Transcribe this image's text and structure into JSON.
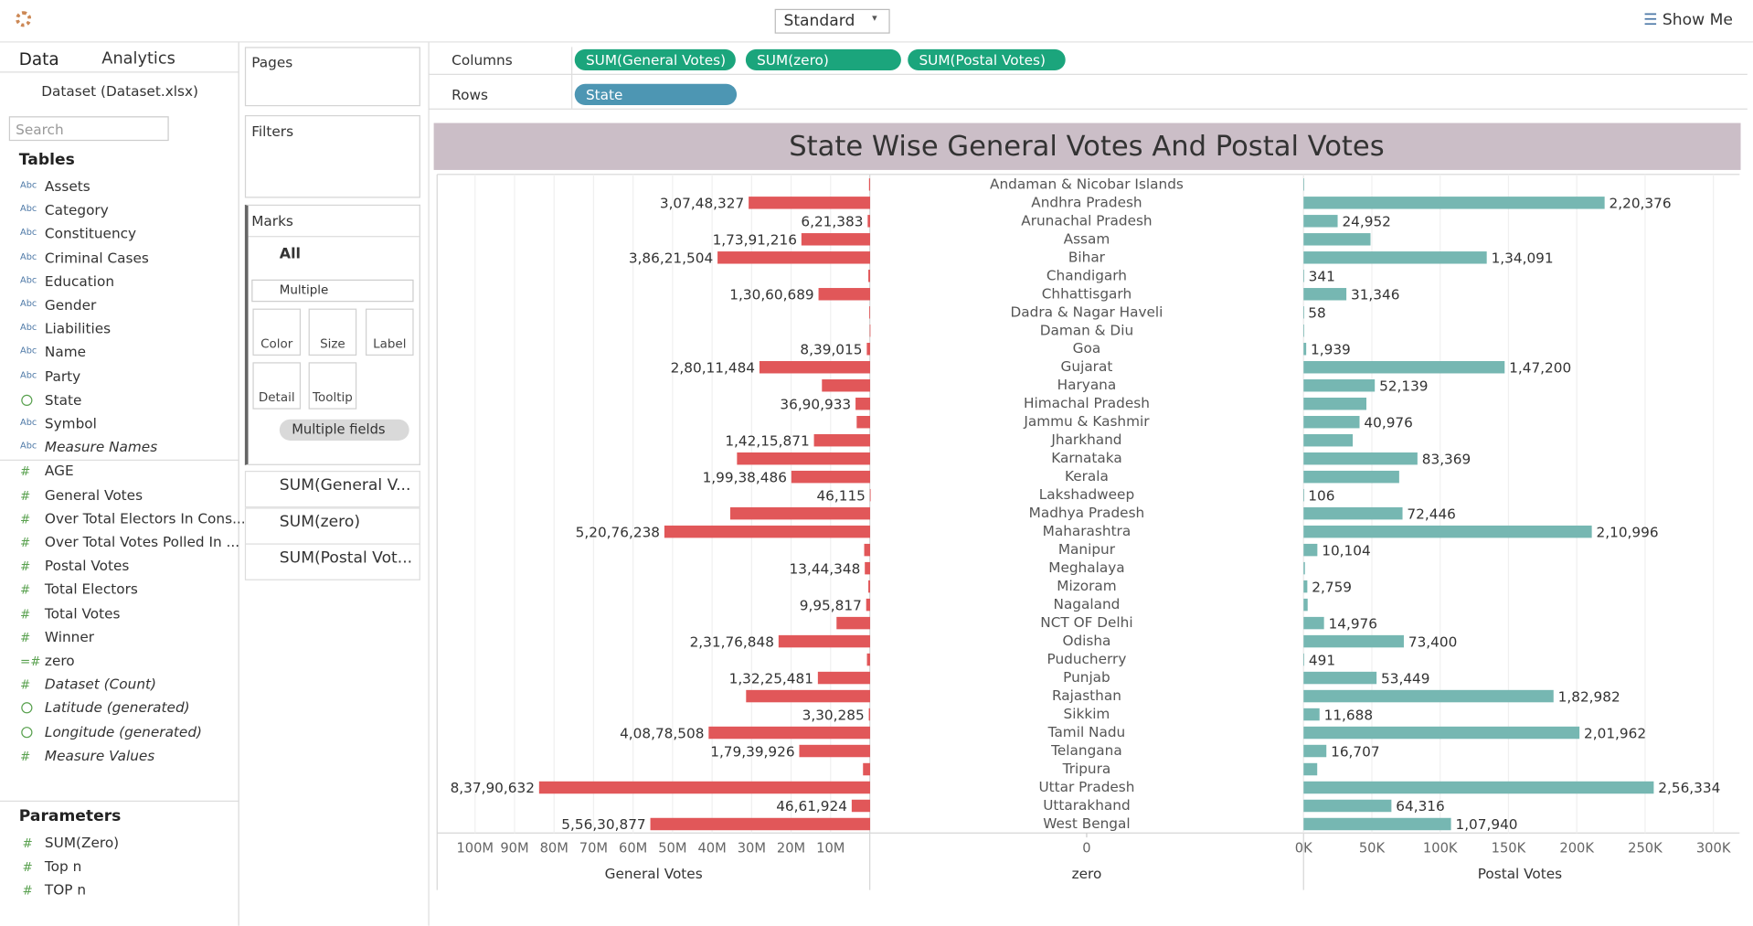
{
  "ui": {
    "toolbar": {
      "view_size": "Standard",
      "show_me": "Show Me"
    },
    "data_pane": {
      "tabs": [
        "Data",
        "Analytics"
      ],
      "datasource": "Dataset (Dataset.xlsx)",
      "search_placeholder": "Search",
      "tables_heading": "Tables",
      "fields": [
        {
          "name": "Assets",
          "kind": "Abc"
        },
        {
          "name": "Category",
          "kind": "Abc"
        },
        {
          "name": "Constituency",
          "kind": "Abc"
        },
        {
          "name": "Criminal Cases",
          "kind": "Abc"
        },
        {
          "name": "Education",
          "kind": "Abc"
        },
        {
          "name": "Gender",
          "kind": "Abc"
        },
        {
          "name": "Liabilities",
          "kind": "Abc"
        },
        {
          "name": "Name",
          "kind": "Abc"
        },
        {
          "name": "Party",
          "kind": "Abc"
        },
        {
          "name": "State",
          "kind": "geo"
        },
        {
          "name": "Symbol",
          "kind": "Abc"
        },
        {
          "name": "Measure Names",
          "kind": "Abc",
          "italic": true
        },
        {
          "name": "AGE",
          "kind": "#"
        },
        {
          "name": "General Votes",
          "kind": "#"
        },
        {
          "name": "Over Total Electors  In Cons...",
          "kind": "#"
        },
        {
          "name": "Over Total Votes Polled  In ...",
          "kind": "#"
        },
        {
          "name": "Postal Votes",
          "kind": "#"
        },
        {
          "name": "Total Electors",
          "kind": "#"
        },
        {
          "name": "Total Votes",
          "kind": "#"
        },
        {
          "name": "Winner",
          "kind": "#"
        },
        {
          "name": "zero",
          "kind": "=#"
        },
        {
          "name": "Dataset (Count)",
          "kind": "#",
          "italic": true
        },
        {
          "name": "Latitude (generated)",
          "kind": "geo",
          "italic": true
        },
        {
          "name": "Longitude (generated)",
          "kind": "geo",
          "italic": true
        },
        {
          "name": "Measure Values",
          "kind": "#",
          "italic": true
        }
      ],
      "parameters_heading": "Parameters",
      "parameters": [
        "SUM(Zero)",
        "Top n",
        "TOP n"
      ]
    },
    "shelves": {
      "pages": "Pages",
      "filters": "Filters",
      "columns_label": "Columns",
      "columns": [
        "SUM(General Votes)",
        "SUM(zero)",
        "SUM(Postal Votes)"
      ],
      "rows_label": "Rows",
      "rows": [
        "State"
      ]
    },
    "marks": {
      "title": "Marks",
      "all": "All",
      "mark_type": "Multiple",
      "buttons": [
        "Color",
        "Size",
        "Label",
        "Detail",
        "Tooltip"
      ],
      "label_field": "Multiple fields",
      "measures": [
        "SUM(General V...",
        "SUM(zero)",
        "SUM(Postal Vot..."
      ]
    }
  },
  "chart_data": {
    "type": "butterfly-bar",
    "title": "State Wise General Votes And Postal Votes",
    "categories": [
      "Andaman & Nicobar Islands",
      "Andhra Pradesh",
      "Arunachal Pradesh",
      "Assam",
      "Bihar",
      "Chandigarh",
      "Chhattisgarh",
      "Dadra & Nagar Haveli",
      "Daman & Diu",
      "Goa",
      "Gujarat",
      "Haryana",
      "Himachal Pradesh",
      "Jammu & Kashmir",
      "Jharkhand",
      "Karnataka",
      "Kerala",
      "Lakshadweep",
      "Madhya Pradesh",
      "Maharashtra",
      "Manipur",
      "Meghalaya",
      "Mizoram",
      "Nagaland",
      "NCT OF Delhi",
      "Odisha",
      "Puducherry",
      "Punjab",
      "Rajasthan",
      "Sikkim",
      "Tamil Nadu",
      "Telangana",
      "Tripura",
      "Uttar Pradesh",
      "Uttarakhand",
      "West Bengal"
    ],
    "center_axis": {
      "label": "zero",
      "ticks": [
        0
      ]
    },
    "series": [
      {
        "name": "General Votes",
        "color": "#e15759",
        "reversed": true,
        "xlim": [
          0,
          109600000
        ],
        "xticks": [
          {
            "value": 10000000,
            "label": "10M"
          },
          {
            "value": 20000000,
            "label": "20M"
          },
          {
            "value": 30000000,
            "label": "30M"
          },
          {
            "value": 40000000,
            "label": "40M"
          },
          {
            "value": 50000000,
            "label": "50M"
          },
          {
            "value": 60000000,
            "label": "60M"
          },
          {
            "value": 70000000,
            "label": "70M"
          },
          {
            "value": 80000000,
            "label": "80M"
          },
          {
            "value": 90000000,
            "label": "90M"
          },
          {
            "value": 100000000,
            "label": "100M"
          }
        ],
        "values": [
          280000,
          30748327,
          621383,
          17391216,
          38621504,
          450000,
          13060689,
          200000,
          90000,
          839015,
          28011484,
          12200000,
          3690933,
          3400000,
          14215871,
          33700000,
          19938486,
          46115,
          35400000,
          52076238,
          1500000,
          1344348,
          450000,
          995817,
          8500000,
          23176848,
          800000,
          13225481,
          31400000,
          330285,
          40878508,
          17939926,
          1800000,
          83790632,
          4661924,
          55630877
        ],
        "value_labels": [
          null,
          "3,07,48,327",
          "6,21,383",
          "1,73,91,216",
          "3,86,21,504",
          null,
          "1,30,60,689",
          null,
          null,
          "8,39,015",
          "2,80,11,484",
          null,
          "36,90,933",
          null,
          "1,42,15,871",
          null,
          "1,99,38,486",
          "46,115",
          null,
          "5,20,76,238",
          null,
          "13,44,348",
          null,
          "9,95,817",
          null,
          "2,31,76,848",
          null,
          "1,32,25,481",
          null,
          "3,30,285",
          "4,08,78,508",
          "1,79,39,926",
          null,
          "8,37,90,632",
          "46,61,924",
          "5,56,30,877"
        ]
      },
      {
        "name": "Postal Votes",
        "color": "#76b7b2",
        "xlim": [
          0,
          316700
        ],
        "xticks": [
          {
            "value": 0,
            "label": "0K"
          },
          {
            "value": 50000,
            "label": "50K"
          },
          {
            "value": 100000,
            "label": "100K"
          },
          {
            "value": 150000,
            "label": "150K"
          },
          {
            "value": 200000,
            "label": "200K"
          },
          {
            "value": 250000,
            "label": "250K"
          },
          {
            "value": 300000,
            "label": "300K"
          }
        ],
        "values": [
          200,
          220376,
          24952,
          49000,
          134091,
          341,
          31346,
          58,
          40,
          1939,
          147200,
          52139,
          46000,
          40976,
          36000,
          83369,
          70000,
          106,
          72446,
          210996,
          10104,
          1000,
          2759,
          3000,
          14976,
          73400,
          491,
          53449,
          182982,
          11688,
          201962,
          16707,
          10000,
          256334,
          64316,
          107940
        ],
        "value_labels": [
          null,
          "2,20,376",
          "24,952",
          null,
          "1,34,091",
          "341",
          "31,346",
          "58",
          null,
          "1,939",
          "1,47,200",
          "52,139",
          null,
          "40,976",
          null,
          "83,369",
          null,
          "106",
          "72,446",
          "2,10,996",
          "10,104",
          null,
          "2,759",
          null,
          "14,976",
          "73,400",
          "491",
          "53,449",
          "1,82,982",
          "11,688",
          "2,01,962",
          "16,707",
          null,
          "2,56,334",
          "64,316",
          "1,07,940"
        ]
      }
    ]
  }
}
